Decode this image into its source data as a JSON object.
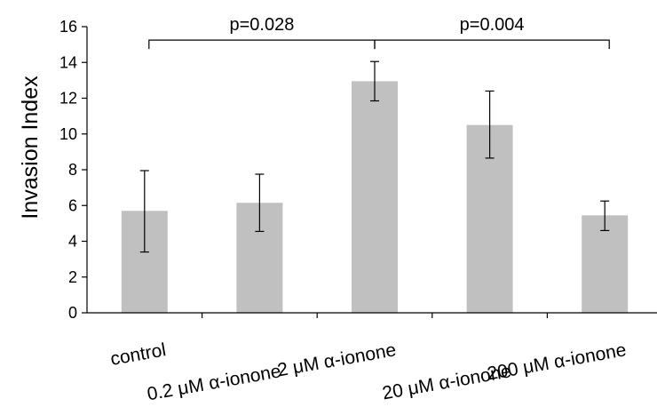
{
  "chart_data": {
    "type": "bar",
    "title": "",
    "xlabel": "",
    "ylabel": "Invasion Index",
    "ylim": [
      0,
      16
    ],
    "yticks": [
      0,
      2,
      4,
      6,
      8,
      10,
      12,
      14,
      16
    ],
    "grid": false,
    "legend": "none",
    "categories": [
      "control",
      "0.2 μM α-ionone",
      "2 μM α-ionone",
      "20 μM α-ionone",
      "200 μM α-ionone"
    ],
    "values": [
      5.7,
      6.15,
      12.95,
      10.5,
      5.45
    ],
    "error_low": [
      3.4,
      4.55,
      11.85,
      8.65,
      4.6
    ],
    "error_high": [
      7.95,
      7.75,
      14.05,
      12.4,
      6.25
    ],
    "bar_color": "#c0c0c0",
    "annotations": [
      {
        "text": "p=0.028",
        "from_category": 0,
        "to_category": 2,
        "y": 15.25
      },
      {
        "text": "p=0.004",
        "from_category": 2,
        "to_category": 4,
        "y": 15.25
      }
    ]
  }
}
